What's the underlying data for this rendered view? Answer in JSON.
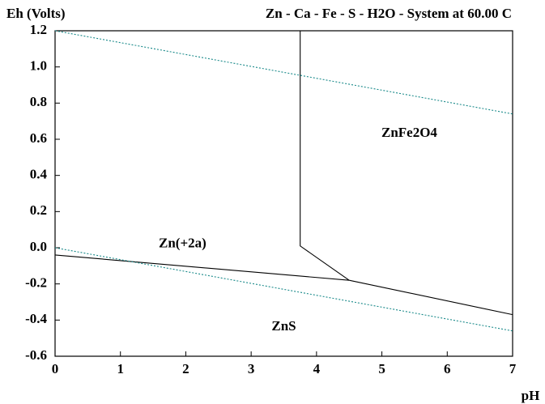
{
  "chart_data": {
    "type": "line",
    "title": "Zn - Ca - Fe - S - H2O - System at 60.00 C",
    "y_label": "Eh (Volts)",
    "x_label": "pH",
    "xlim": [
      0,
      7
    ],
    "xticks": [
      0,
      1,
      2,
      3,
      4,
      5,
      6,
      7
    ],
    "ylim": [
      -0.6,
      1.2
    ],
    "yticks": [
      -0.6,
      -0.4,
      -0.2,
      {
        "value": 0,
        "label": "0.0"
      },
      0.2,
      0.4,
      0.6,
      0.8,
      {
        "value": 1,
        "label": "1.0"
      },
      1.2
    ],
    "series": [
      {
        "color": "#000000",
        "dashed": false,
        "x": [
          3.75,
          3.75,
          4.5
        ],
        "values": [
          1.2,
          0.01,
          -0.18
        ]
      },
      {
        "color": "#000000",
        "dashed": false,
        "x": [
          0,
          4.5
        ],
        "values": [
          -0.04,
          -0.18
        ]
      },
      {
        "color": "#000000",
        "dashed": false,
        "x": [
          4.5,
          7
        ],
        "values": [
          -0.18,
          -0.37
        ]
      },
      {
        "color": "#1a8a8a",
        "dashed": true,
        "x": [
          0,
          7
        ],
        "values": [
          1.2,
          0.74
        ]
      },
      {
        "color": "#1a8a8a",
        "dashed": true,
        "x": [
          0,
          7
        ],
        "values": [
          0.0,
          -0.46
        ]
      }
    ],
    "annotations": [
      {
        "text": "ZnFe2O4",
        "x": 5.42,
        "y": 0.63
      },
      {
        "text": "Zn(+2a)",
        "x": 1.95,
        "y": 0.02
      },
      {
        "text": "ZnS",
        "x": 3.5,
        "y": -0.44
      }
    ]
  }
}
